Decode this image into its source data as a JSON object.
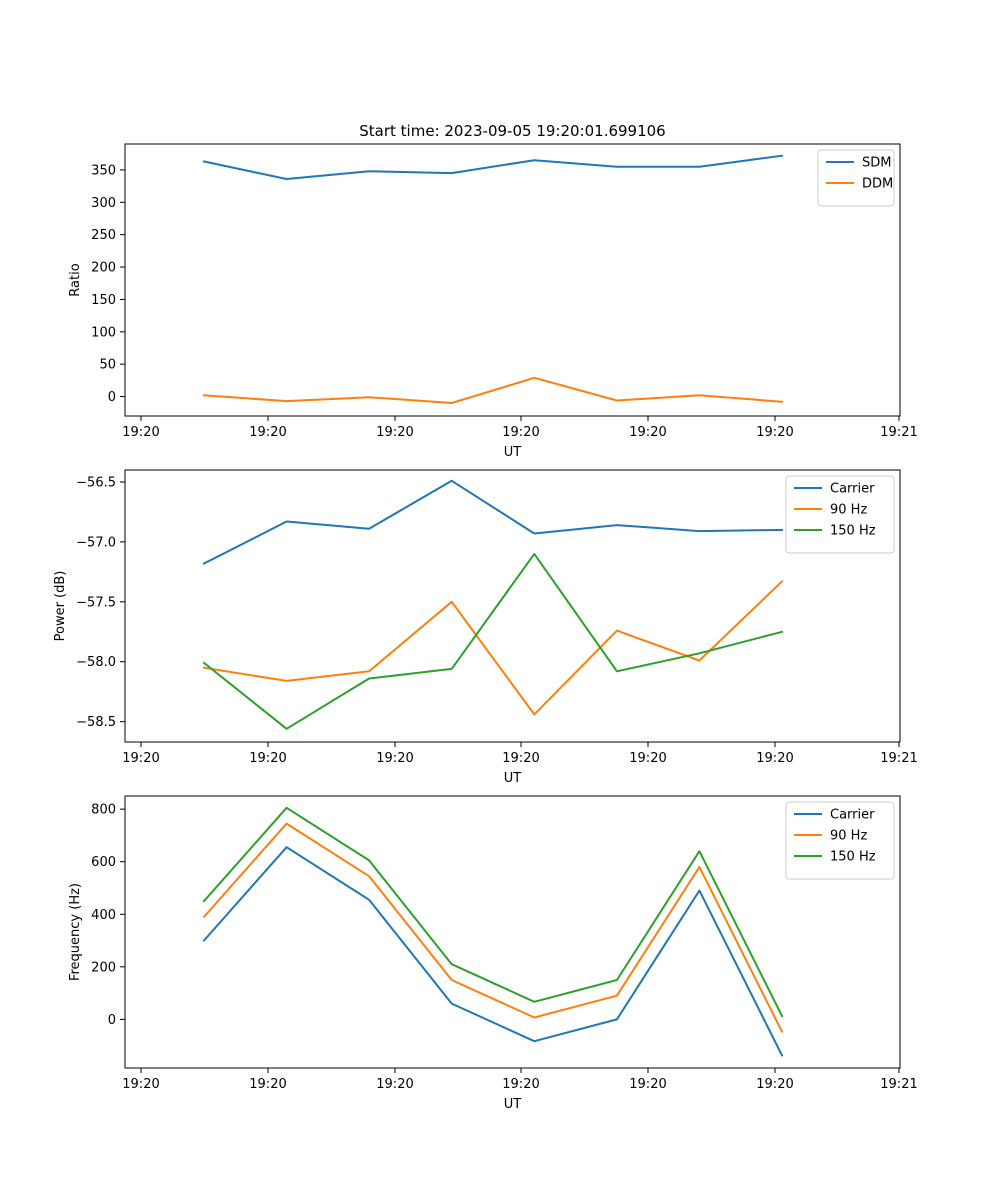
{
  "chart_data": [
    {
      "type": "line",
      "title": "Start time: 2023-09-05 19:20:01.699106",
      "xlabel": "UT",
      "ylabel": "Ratio",
      "x_tick_labels": [
        "19:20",
        "19:20",
        "19:20",
        "19:20",
        "19:20",
        "19:20",
        "19:21"
      ],
      "x": [
        1,
        2,
        3,
        4,
        5,
        6,
        7,
        8
      ],
      "ylim": [
        -30,
        390
      ],
      "y_ticks": [
        0,
        50,
        100,
        150,
        200,
        250,
        300,
        350
      ],
      "series": [
        {
          "name": "SDM",
          "color": "#1f77b4",
          "values": [
            363,
            336,
            348,
            345,
            365,
            355,
            355,
            372
          ]
        },
        {
          "name": "DDM",
          "color": "#ff7f0e",
          "values": [
            2,
            -7,
            -1,
            -10,
            29,
            -6,
            2,
            -8
          ]
        }
      ],
      "legend": "top-right"
    },
    {
      "type": "line",
      "title": "",
      "xlabel": "UT",
      "ylabel": "Power (dB)",
      "x_tick_labels": [
        "19:20",
        "19:20",
        "19:20",
        "19:20",
        "19:20",
        "19:20",
        "19:21"
      ],
      "x": [
        1,
        2,
        3,
        4,
        5,
        6,
        7,
        8
      ],
      "ylim": [
        -58.67,
        -56.4
      ],
      "y_ticks": [
        -58.5,
        -58.0,
        -57.5,
        -57.0,
        -56.5
      ],
      "y_tick_labels": [
        "−58.5",
        "−58.0",
        "−57.5",
        "−57.0",
        "−56.5"
      ],
      "series": [
        {
          "name": "Carrier",
          "color": "#1f77b4",
          "values": [
            -57.18,
            -56.83,
            -56.89,
            -56.49,
            -56.93,
            -56.86,
            -56.91,
            -56.9
          ]
        },
        {
          "name": "90 Hz",
          "color": "#ff7f0e",
          "values": [
            -58.05,
            -58.16,
            -58.08,
            -57.5,
            -58.44,
            -57.74,
            -57.99,
            -57.33
          ]
        },
        {
          "name": "150 Hz",
          "color": "#2ca02c",
          "values": [
            -58.01,
            -58.56,
            -58.14,
            -58.06,
            -57.1,
            -58.08,
            -57.93,
            -57.75
          ]
        }
      ],
      "legend": "top-right"
    },
    {
      "type": "line",
      "title": "",
      "xlabel": "UT",
      "ylabel": "Frequency (Hz)",
      "x_tick_labels": [
        "19:20",
        "19:20",
        "19:20",
        "19:20",
        "19:20",
        "19:20",
        "19:21"
      ],
      "x": [
        1,
        2,
        3,
        4,
        5,
        6,
        7,
        8
      ],
      "ylim": [
        -185,
        850
      ],
      "y_ticks": [
        0,
        200,
        400,
        600,
        800
      ],
      "series": [
        {
          "name": "Carrier",
          "color": "#1f77b4",
          "values": [
            300,
            655,
            455,
            60,
            -83,
            0,
            490,
            -137
          ]
        },
        {
          "name": "90 Hz",
          "color": "#ff7f0e",
          "values": [
            390,
            745,
            545,
            150,
            7,
            90,
            580,
            -47
          ]
        },
        {
          "name": "150 Hz",
          "color": "#2ca02c",
          "values": [
            450,
            805,
            605,
            210,
            67,
            150,
            640,
            13
          ]
        }
      ],
      "legend": "top-right"
    }
  ]
}
